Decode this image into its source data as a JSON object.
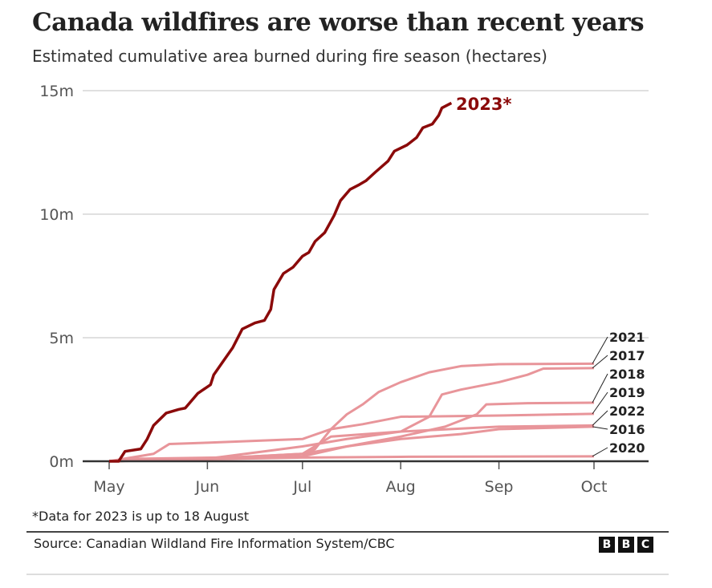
{
  "title": "Canada wildfires are worse than recent years",
  "subtitle": "Estimated cumulative area burned during fire season (hectares)",
  "note": "*Data for 2023 is up to 18 August",
  "source": "Source: Canadian Wildland Fire Information System/CBC",
  "logo": [
    "B",
    "B",
    "C"
  ],
  "chart_data": {
    "type": "line",
    "title": "Canada wildfires are worse than recent years",
    "ylabel": "",
    "xlabel": "",
    "ylim": [
      0,
      15000000
    ],
    "yticks": [
      {
        "v": 0,
        "label": "0m"
      },
      {
        "v": 5000000,
        "label": "5m"
      },
      {
        "v": 10000000,
        "label": "10m"
      },
      {
        "v": 15000000,
        "label": "15m"
      }
    ],
    "xticks": [
      {
        "v": "05-01",
        "label": "May"
      },
      {
        "v": "06-01",
        "label": "Jun"
      },
      {
        "v": "07-01",
        "label": "Jul"
      },
      {
        "v": "08-01",
        "label": "Aug"
      },
      {
        "v": "09-01",
        "label": "Sep"
      },
      {
        "v": "10-01",
        "label": "Oct"
      }
    ],
    "xlim": [
      "05-01",
      "10-20"
    ],
    "grid": true,
    "highlight_color": "#8b0a0a",
    "other_color": "#e8959a",
    "series": [
      {
        "name": "2021",
        "label": "2021",
        "points": [
          [
            "05-01",
            0
          ],
          [
            "06-01",
            100000
          ],
          [
            "07-01",
            200000
          ],
          [
            "07-05",
            500000
          ],
          [
            "07-10",
            1300000
          ],
          [
            "07-15",
            1900000
          ],
          [
            "07-20",
            2300000
          ],
          [
            "07-25",
            2800000
          ],
          [
            "08-01",
            3200000
          ],
          [
            "08-10",
            3600000
          ],
          [
            "08-20",
            3850000
          ],
          [
            "09-01",
            3930000
          ],
          [
            "10-01",
            3950000
          ]
        ]
      },
      {
        "name": "2017",
        "label": "2017",
        "points": [
          [
            "05-01",
            0
          ],
          [
            "06-01",
            100000
          ],
          [
            "07-01",
            600000
          ],
          [
            "07-15",
            900000
          ],
          [
            "08-01",
            1200000
          ],
          [
            "08-10",
            1800000
          ],
          [
            "08-14",
            2700000
          ],
          [
            "08-20",
            2900000
          ],
          [
            "09-01",
            3200000
          ],
          [
            "09-10",
            3500000
          ],
          [
            "09-15",
            3750000
          ],
          [
            "10-01",
            3770000
          ]
        ]
      },
      {
        "name": "2018",
        "label": "2018",
        "points": [
          [
            "05-01",
            0
          ],
          [
            "06-01",
            100000
          ],
          [
            "07-01",
            300000
          ],
          [
            "07-15",
            600000
          ],
          [
            "08-01",
            1000000
          ],
          [
            "08-15",
            1400000
          ],
          [
            "08-25",
            1900000
          ],
          [
            "08-28",
            2300000
          ],
          [
            "09-10",
            2350000
          ],
          [
            "10-01",
            2370000
          ]
        ]
      },
      {
        "name": "2019",
        "label": "2019",
        "points": [
          [
            "05-01",
            0
          ],
          [
            "05-15",
            300000
          ],
          [
            "05-20",
            700000
          ],
          [
            "06-01",
            750000
          ],
          [
            "07-01",
            900000
          ],
          [
            "07-10",
            1300000
          ],
          [
            "07-20",
            1500000
          ],
          [
            "08-01",
            1800000
          ],
          [
            "09-01",
            1850000
          ],
          [
            "10-01",
            1920000
          ]
        ]
      },
      {
        "name": "2022",
        "label": "2022",
        "points": [
          [
            "05-01",
            0
          ],
          [
            "06-01",
            100000
          ],
          [
            "07-01",
            300000
          ],
          [
            "07-10",
            1000000
          ],
          [
            "08-01",
            1200000
          ],
          [
            "09-01",
            1400000
          ],
          [
            "10-01",
            1450000
          ]
        ]
      },
      {
        "name": "2016",
        "label": "2016",
        "points": [
          [
            "05-01",
            0
          ],
          [
            "05-10",
            100000
          ],
          [
            "07-01",
            200000
          ],
          [
            "07-15",
            600000
          ],
          [
            "08-01",
            900000
          ],
          [
            "08-20",
            1100000
          ],
          [
            "09-01",
            1300000
          ],
          [
            "10-01",
            1400000
          ]
        ]
      },
      {
        "name": "2020",
        "label": "2020",
        "points": [
          [
            "05-01",
            0
          ],
          [
            "06-01",
            80000
          ],
          [
            "07-01",
            150000
          ],
          [
            "08-01",
            180000
          ],
          [
            "10-01",
            200000
          ]
        ]
      },
      {
        "name": "2023",
        "label": "2023*",
        "highlight": true,
        "points": [
          [
            "05-01",
            0
          ],
          [
            "05-04",
            0
          ],
          [
            "05-06",
            400000
          ],
          [
            "05-11",
            500000
          ],
          [
            "05-13",
            900000
          ],
          [
            "05-15",
            1450000
          ],
          [
            "05-19",
            1950000
          ],
          [
            "05-23",
            2100000
          ],
          [
            "05-25",
            2150000
          ],
          [
            "05-29",
            2750000
          ],
          [
            "06-02",
            3100000
          ],
          [
            "06-03",
            3500000
          ],
          [
            "06-06",
            4050000
          ],
          [
            "06-09",
            4600000
          ],
          [
            "06-12",
            5350000
          ],
          [
            "06-16",
            5600000
          ],
          [
            "06-19",
            5700000
          ],
          [
            "06-21",
            6150000
          ],
          [
            "06-22",
            6950000
          ],
          [
            "06-25",
            7600000
          ],
          [
            "06-28",
            7850000
          ],
          [
            "07-01",
            8300000
          ],
          [
            "07-03",
            8450000
          ],
          [
            "07-05",
            8900000
          ],
          [
            "07-08",
            9250000
          ],
          [
            "07-11",
            9950000
          ],
          [
            "07-13",
            10550000
          ],
          [
            "07-16",
            11000000
          ],
          [
            "07-19",
            11200000
          ],
          [
            "07-21",
            11350000
          ],
          [
            "07-24",
            11700000
          ],
          [
            "07-28",
            12150000
          ],
          [
            "07-30",
            12550000
          ],
          [
            "08-03",
            12800000
          ],
          [
            "08-06",
            13100000
          ],
          [
            "08-08",
            13500000
          ],
          [
            "08-11",
            13650000
          ],
          [
            "08-13",
            14000000
          ],
          [
            "08-14",
            14300000
          ],
          [
            "08-17",
            14500000
          ]
        ]
      }
    ]
  }
}
